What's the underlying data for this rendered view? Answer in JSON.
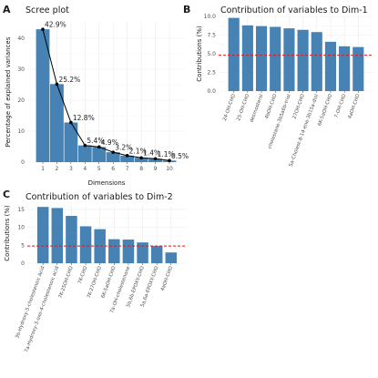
{
  "colors": {
    "bar": "#4682b4",
    "line": "#000000",
    "ref_line": "#e31a1c",
    "grid": "#ebebeb"
  },
  "chart_data": [
    {
      "id": "A",
      "type": "bar",
      "panel_letter": "A",
      "title": "Scree plot",
      "xlabel": "Dimensions",
      "ylabel": "Percentage of explained variances",
      "categories": [
        "1",
        "2",
        "3",
        "4",
        "5",
        "6",
        "7",
        "8",
        "9",
        "10"
      ],
      "values": [
        42.9,
        25.2,
        12.8,
        5.4,
        4.9,
        3.2,
        2.1,
        1.4,
        1.1,
        0.5
      ],
      "data_labels": [
        "42.9%",
        "25.2%",
        "12.8%",
        "5.4%",
        "4.9%",
        "3.2%",
        "2.1%",
        "1.4%",
        "1.1%",
        "0.5%"
      ],
      "line_overlay": true,
      "ylim": [
        0,
        45
      ],
      "yticks": [
        0,
        10,
        20,
        30,
        40
      ],
      "grid": true
    },
    {
      "id": "B",
      "type": "bar",
      "panel_letter": "B",
      "title": "Contribution of variables to Dim-1",
      "xlabel": "",
      "ylabel": "Contributions (%)",
      "categories": [
        "24-OH-CHO",
        "25-OH-CHO",
        "desmosterol",
        "4bOH-CHO",
        "cholestane-3b5a6b-triol",
        "27OH-CHO",
        "5a-Cholest-8-14-ene-3b15a-diol",
        "6K-5aOH-CHO",
        "7-OH-CHO",
        "4aOH-CHO"
      ],
      "values": [
        9.8,
        8.8,
        8.7,
        8.6,
        8.4,
        8.2,
        7.9,
        6.6,
        6.0,
        5.9
      ],
      "reference_line": 4.8,
      "ylim": [
        0,
        10
      ],
      "yticks": [
        0.0,
        2.5,
        5.0,
        7.5,
        10.0
      ],
      "ytick_labels": [
        "0.0",
        "2.5",
        "5.0",
        "7.5",
        "10.0"
      ],
      "grid": true
    },
    {
      "id": "C",
      "type": "bar",
      "panel_letter": "C",
      "title": "Contribution of variables to Dim-2",
      "xlabel": "",
      "ylabel": "Contributions (%)",
      "categories": [
        "3b-Hydroxy-5-cholestenoic Acid",
        "7a-Hydroxy-3-oxo-4-cholestenoic acid",
        "7K-25OH-CHO",
        "7K-CHO",
        "7K-27OH-CHO",
        "6K-5aOH-CHO",
        "7a-OH-cholestenone",
        "5b,6b-EPOXY-CHO",
        "5a,6a-EPOXY-CHO",
        "4aOH-CHO"
      ],
      "values": [
        15.7,
        15.4,
        13.2,
        10.3,
        9.5,
        6.7,
        6.6,
        5.8,
        4.8,
        3.0
      ],
      "reference_line": 4.8,
      "ylim": [
        0,
        16
      ],
      "yticks": [
        0,
        5,
        10,
        15
      ],
      "grid": true
    }
  ]
}
